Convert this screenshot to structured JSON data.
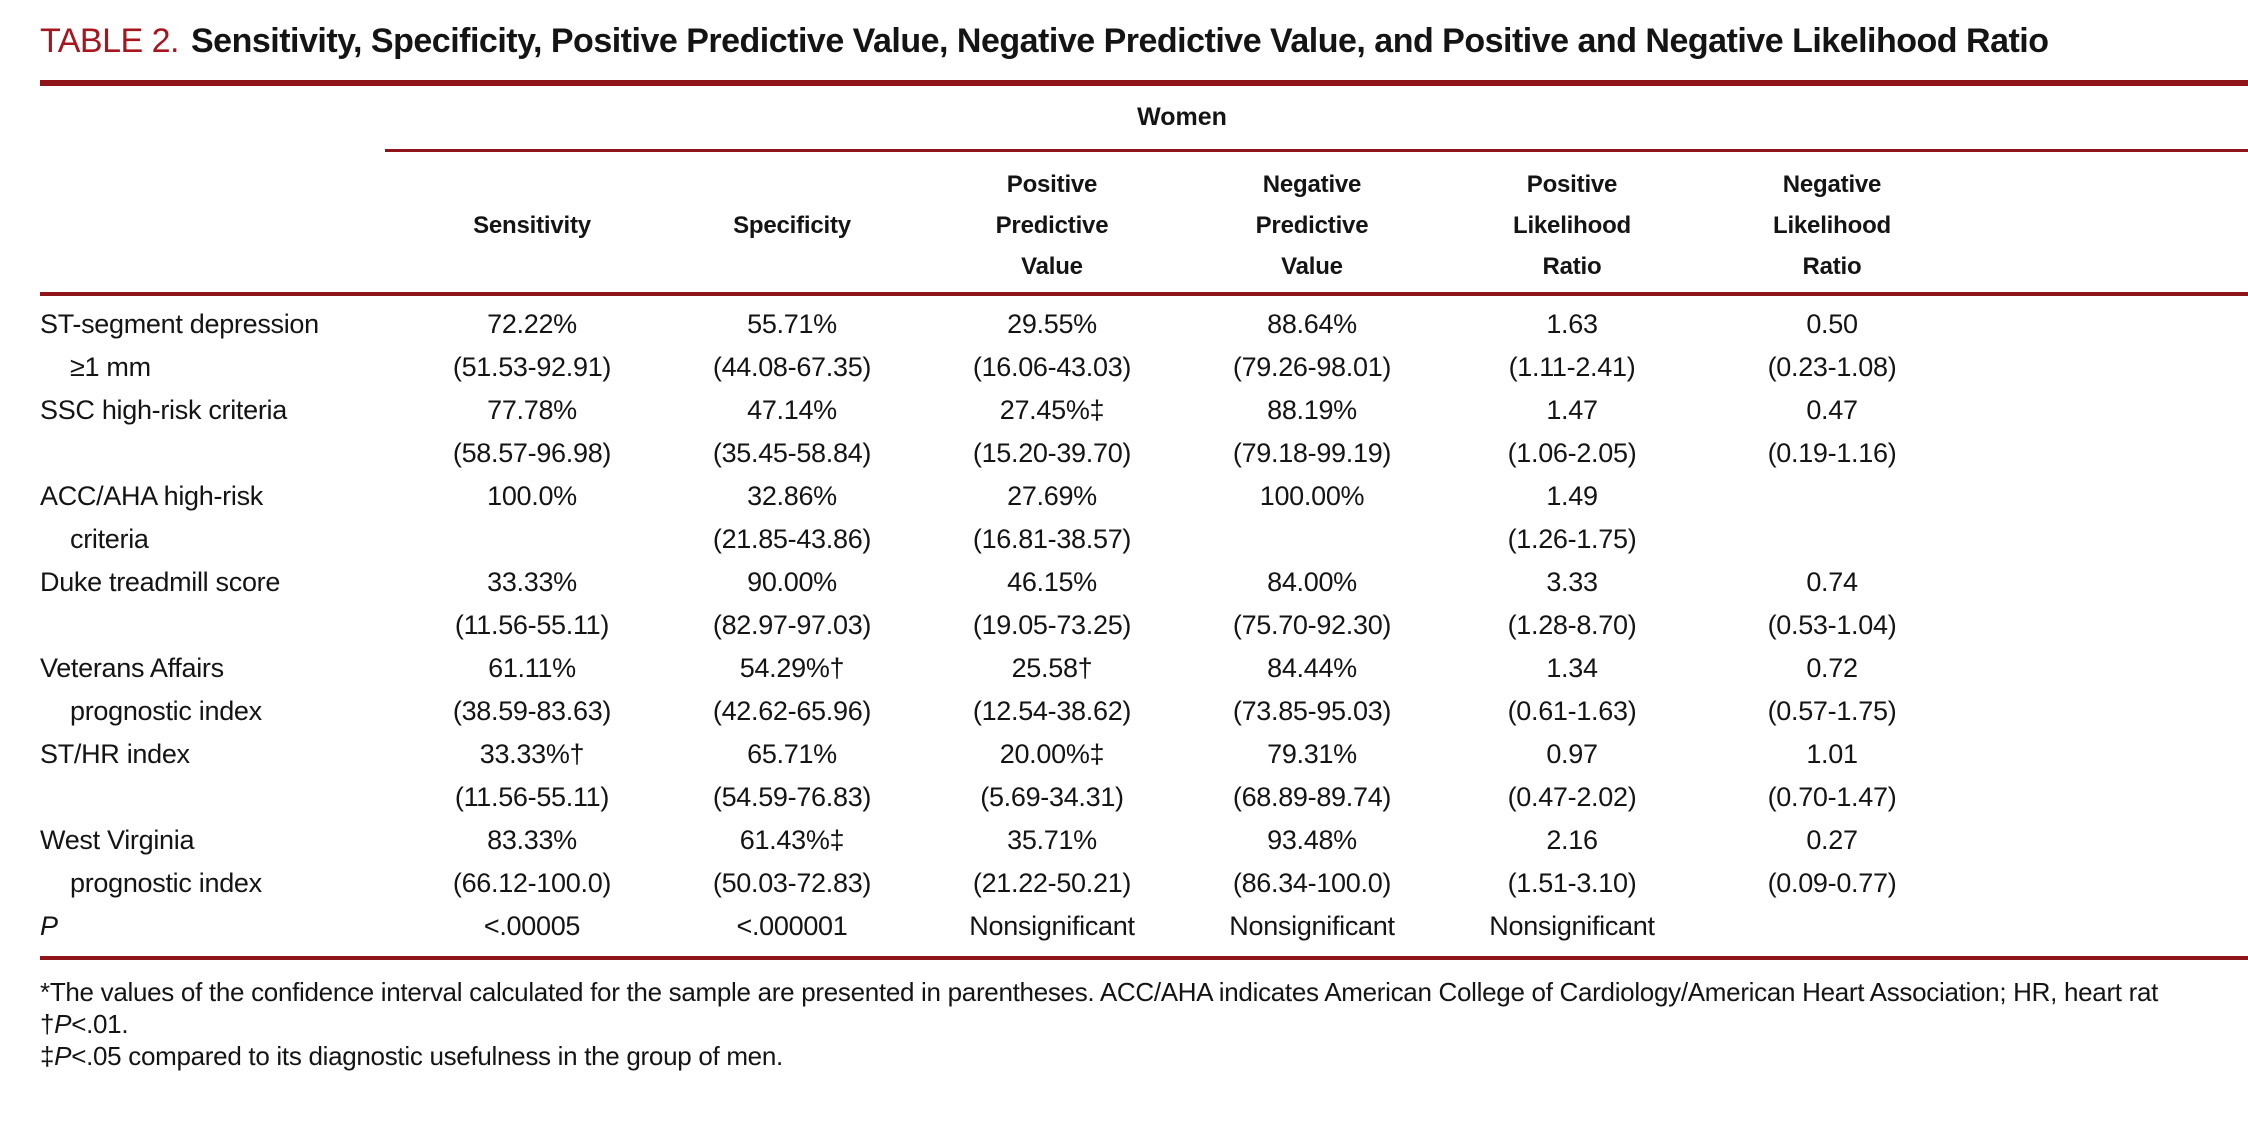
{
  "title": {
    "label": "TABLE 2.",
    "text": "Sensitivity, Specificity, Positive Predictive Value, Negative Predictive Value, and Positive and Negative Likelihood Ratio"
  },
  "group_header": "Women",
  "columns": [
    "Sensitivity",
    "Specificity",
    "Positive\nPredictive\nValue",
    "Negative\nPredictive\nValue",
    "Positive\nLikelihood\nRatio",
    "Negative\nLikelihood\nRatio"
  ],
  "rows": [
    {
      "label": [
        "ST-segment depression",
        "≥1 mm"
      ],
      "cells": [
        [
          "72.22%",
          "(51.53-92.91)"
        ],
        [
          "55.71%",
          "(44.08-67.35)"
        ],
        [
          "29.55%",
          "(16.06-43.03)"
        ],
        [
          "88.64%",
          "(79.26-98.01)"
        ],
        [
          "1.63",
          "(1.11-2.41)"
        ],
        [
          "0.50",
          "(0.23-1.08)"
        ]
      ]
    },
    {
      "label": [
        "SSC high-risk criteria",
        ""
      ],
      "cells": [
        [
          "77.78%",
          "(58.57-96.98)"
        ],
        [
          "47.14%",
          "(35.45-58.84)"
        ],
        [
          "27.45%‡",
          "(15.20-39.70)"
        ],
        [
          "88.19%",
          "(79.18-99.19)"
        ],
        [
          "1.47",
          "(1.06-2.05)"
        ],
        [
          "0.47",
          "(0.19-1.16)"
        ]
      ]
    },
    {
      "label": [
        "ACC/AHA high-risk",
        "criteria"
      ],
      "cells": [
        [
          "100.0%",
          ""
        ],
        [
          "32.86%",
          "(21.85-43.86)"
        ],
        [
          "27.69%",
          "(16.81-38.57)"
        ],
        [
          "100.00%",
          ""
        ],
        [
          "1.49",
          "(1.26-1.75)"
        ],
        [
          "",
          ""
        ]
      ]
    },
    {
      "label": [
        "Duke treadmill score",
        ""
      ],
      "cells": [
        [
          "33.33%",
          "(11.56-55.11)"
        ],
        [
          "90.00%",
          "(82.97-97.03)"
        ],
        [
          "46.15%",
          "(19.05-73.25)"
        ],
        [
          "84.00%",
          "(75.70-92.30)"
        ],
        [
          "3.33",
          "(1.28-8.70)"
        ],
        [
          "0.74",
          "(0.53-1.04)"
        ]
      ]
    },
    {
      "label": [
        "Veterans Affairs",
        "prognostic index"
      ],
      "cells": [
        [
          "61.11%",
          "(38.59-83.63)"
        ],
        [
          "54.29%†",
          "(42.62-65.96)"
        ],
        [
          "25.58†",
          "(12.54-38.62)"
        ],
        [
          "84.44%",
          "(73.85-95.03)"
        ],
        [
          "1.34",
          "(0.61-1.63)"
        ],
        [
          "0.72",
          "(0.57-1.75)"
        ]
      ]
    },
    {
      "label": [
        "ST/HR index",
        ""
      ],
      "cells": [
        [
          "33.33%†",
          "(11.56-55.11)"
        ],
        [
          "65.71%",
          "(54.59-76.83)"
        ],
        [
          "20.00%‡",
          "(5.69-34.31)"
        ],
        [
          "79.31%",
          "(68.89-89.74)"
        ],
        [
          "0.97",
          "(0.47-2.02)"
        ],
        [
          "1.01",
          "(0.70-1.47)"
        ]
      ]
    },
    {
      "label": [
        "West Virginia",
        "prognostic index"
      ],
      "cells": [
        [
          "83.33%",
          "(66.12-100.0)"
        ],
        [
          "61.43%‡",
          "(50.03-72.83)"
        ],
        [
          "35.71%",
          "(21.22-50.21)"
        ],
        [
          "93.48%",
          "(86.34-100.0)"
        ],
        [
          "2.16",
          "(1.51-3.10)"
        ],
        [
          "0.27",
          "(0.09-0.77)"
        ]
      ]
    },
    {
      "label": [
        "P"
      ],
      "italic_label": true,
      "cells": [
        [
          "<.00005"
        ],
        [
          "<.000001"
        ],
        [
          "Nonsignificant"
        ],
        [
          "Nonsignificant"
        ],
        [
          "Nonsignificant"
        ],
        [
          ""
        ]
      ]
    }
  ],
  "footnotes": [
    {
      "segments": [
        {
          "text": "*The values of the confidence interval calculated for the sample are presented in parentheses. ACC/AHA indicates American College of Cardiology/American Heart Association; HR, heart rat",
          "italic": false
        }
      ]
    },
    {
      "segments": [
        {
          "text": "†",
          "italic": false
        },
        {
          "text": "P",
          "italic": true
        },
        {
          "text": "<.01.",
          "italic": false
        }
      ]
    },
    {
      "segments": [
        {
          "text": "‡",
          "italic": false
        },
        {
          "text": "P",
          "italic": true
        },
        {
          "text": "<.05 compared to its diagnostic usefulness in the group of men.",
          "italic": false
        }
      ]
    }
  ],
  "colors": {
    "accent_red": "#A5161E",
    "rule_red": "#8F151A",
    "text": "#141414"
  }
}
